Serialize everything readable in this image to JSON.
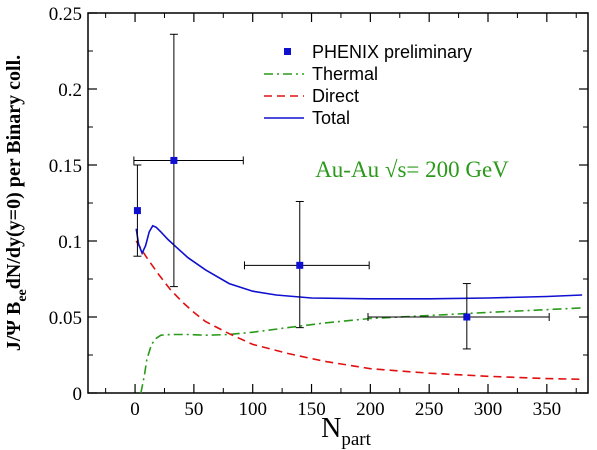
{
  "chart_data": {
    "type": "line",
    "xlabel_main": "N",
    "xlabel_sub": "part",
    "ylabel_pre": "J/Ψ B",
    "ylabel_sub": "ee",
    "ylabel_post": "dN/dy(y=0) per Binary coll.",
    "xlim": [
      -40,
      385
    ],
    "ylim": [
      0,
      0.25
    ],
    "x_ticks": [
      0,
      50,
      100,
      150,
      200,
      250,
      300,
      350
    ],
    "y_ticks": [
      0,
      0.05,
      0.1,
      0.15,
      0.2,
      0.25
    ],
    "x_tick_labels": [
      "0",
      "50",
      "100",
      "150",
      "200",
      "250",
      "300",
      "350"
    ],
    "y_tick_labels": [
      "0",
      "0.05",
      "0.1",
      "0.15",
      "0.2",
      "0.25"
    ],
    "annotation": {
      "text": "Au-Au √s= 200 GeV",
      "color": "#2a9a1a"
    },
    "legend_placement": "top-right",
    "series": [
      {
        "name": "PHENIX preliminary",
        "kind": "scatter",
        "color": "#1010d0",
        "points": [
          {
            "x": 2,
            "y": 0.12,
            "xerr": [
              0,
              0
            ],
            "yerr": [
              0.03,
              0.03
            ]
          },
          {
            "x": 33,
            "y": 0.153,
            "xerr": [
              34,
              59
            ],
            "yerr": [
              0.083,
              0.083
            ]
          },
          {
            "x": 140,
            "y": 0.084,
            "xerr": [
              47,
              59
            ],
            "yerr": [
              0.041,
              0.042
            ]
          },
          {
            "x": 282,
            "y": 0.05,
            "xerr": [
              84,
              70
            ],
            "yerr": [
              0.021,
              0.022
            ]
          }
        ]
      },
      {
        "name": "Thermal",
        "kind": "line",
        "color": "#2a9a1a",
        "dash": "dashdot",
        "x": [
          5,
          8,
          10,
          14,
          18,
          22,
          30,
          45,
          60,
          80,
          100,
          130,
          160,
          200,
          250,
          300,
          340,
          380
        ],
        "y": [
          0.0,
          0.012,
          0.022,
          0.032,
          0.036,
          0.038,
          0.0385,
          0.0385,
          0.038,
          0.0385,
          0.04,
          0.043,
          0.046,
          0.049,
          0.051,
          0.053,
          0.0545,
          0.056
        ]
      },
      {
        "name": "Direct",
        "kind": "line",
        "color": "#e01010",
        "dash": "dashed",
        "x": [
          1,
          5,
          10,
          20,
          30,
          40,
          50,
          60,
          80,
          100,
          130,
          160,
          200,
          250,
          300,
          350,
          380
        ],
        "y": [
          0.1,
          0.095,
          0.089,
          0.078,
          0.068,
          0.06,
          0.053,
          0.047,
          0.039,
          0.032,
          0.026,
          0.021,
          0.016,
          0.013,
          0.011,
          0.0095,
          0.009
        ]
      },
      {
        "name": "Total",
        "kind": "line",
        "color": "#1010d0",
        "dash": "solid",
        "x": [
          1,
          3,
          6,
          9,
          12,
          15,
          18,
          22,
          28,
          35,
          45,
          60,
          80,
          100,
          120,
          150,
          200,
          250,
          300,
          350,
          380
        ],
        "y": [
          0.108,
          0.098,
          0.092,
          0.097,
          0.106,
          0.11,
          0.109,
          0.106,
          0.101,
          0.096,
          0.089,
          0.081,
          0.072,
          0.067,
          0.0645,
          0.0625,
          0.062,
          0.062,
          0.0625,
          0.0635,
          0.0645
        ]
      }
    ]
  }
}
